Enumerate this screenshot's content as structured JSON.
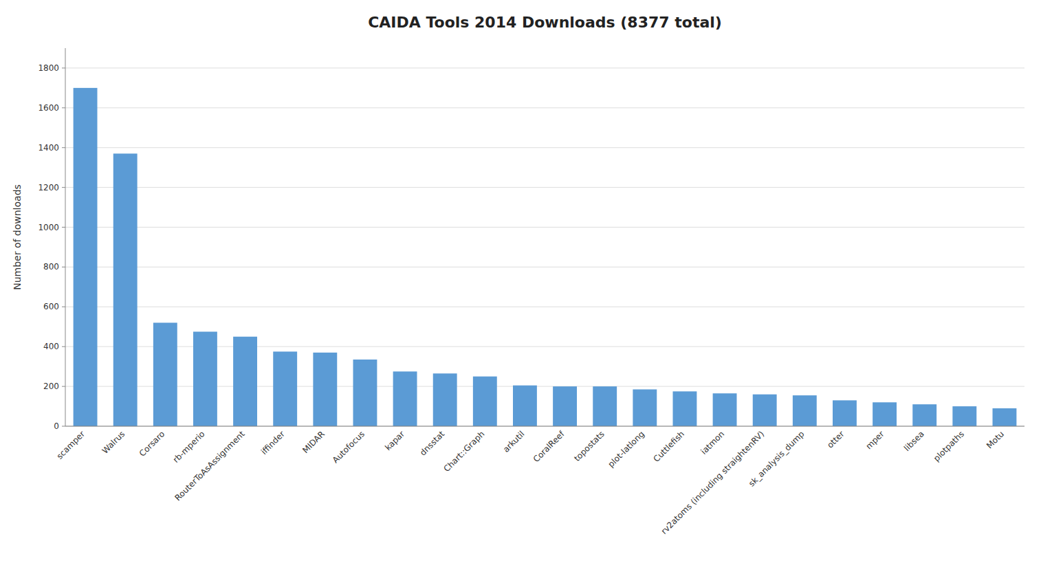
{
  "chart_data": {
    "type": "bar",
    "title": "CAIDA Tools 2014 Downloads (8377 total)",
    "ylabel": "Number of downloads",
    "categories": [
      "scamper",
      "Walrus",
      "Corsaro",
      "rb-mperio",
      "RouterToAsAssignment",
      "iffinder",
      "MIDAR",
      "Autofocus",
      "kapar",
      "dnsstat",
      "Chart::Graph",
      "arkutil",
      "CoralReef",
      "topostats",
      "plot-latlong",
      "Cuttlefish",
      "iatmon",
      "rv2atoms (including straightenRV)",
      "sk_analysis_dump",
      "otter",
      "mper",
      "libsea",
      "plotpaths",
      "Motu"
    ],
    "values": [
      1700,
      1370,
      520,
      475,
      450,
      375,
      370,
      335,
      275,
      265,
      250,
      205,
      200,
      200,
      185,
      175,
      165,
      160,
      155,
      130,
      120,
      110,
      100,
      90
    ],
    "color": "#5B9BD5",
    "ylim": [
      0,
      1900
    ],
    "yticks": [
      0,
      200,
      400,
      600,
      800,
      1000,
      1200,
      1400,
      1600,
      1800
    ],
    "grid": true
  }
}
